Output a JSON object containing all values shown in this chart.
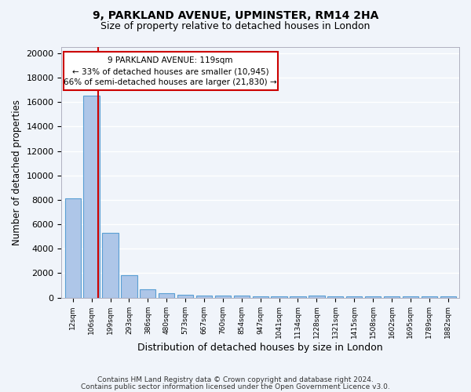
{
  "title1": "9, PARKLAND AVENUE, UPMINSTER, RM14 2HA",
  "title2": "Size of property relative to detached houses in London",
  "xlabel": "Distribution of detached houses by size in London",
  "ylabel": "Number of detached properties",
  "bar_color": "#aec6e8",
  "bar_edge_color": "#5a9fd4",
  "bin_labels": [
    "12sqm",
    "106sqm",
    "199sqm",
    "293sqm",
    "386sqm",
    "480sqm",
    "573sqm",
    "667sqm",
    "760sqm",
    "854sqm",
    "947sqm",
    "1041sqm",
    "1134sqm",
    "1228sqm",
    "1321sqm",
    "1415sqm",
    "1508sqm",
    "1602sqm",
    "1695sqm",
    "1789sqm",
    "1882sqm"
  ],
  "bar_heights": [
    8100,
    16500,
    5300,
    1850,
    650,
    350,
    250,
    175,
    150,
    150,
    125,
    100,
    100,
    150,
    100,
    100,
    100,
    100,
    100,
    100,
    100
  ],
  "ylim": [
    0,
    20500
  ],
  "yticks": [
    0,
    2000,
    4000,
    6000,
    8000,
    10000,
    12000,
    14000,
    16000,
    18000,
    20000
  ],
  "property_line_label": "9 PARKLAND AVENUE: 119sqm",
  "annotation_line1": "← 33% of detached houses are smaller (10,945)",
  "annotation_line2": "66% of semi-detached houses are larger (21,830) →",
  "annotation_box_color": "#ffffff",
  "annotation_box_edge_color": "#cc0000",
  "red_line_color": "#cc0000",
  "footer1": "Contains HM Land Registry data © Crown copyright and database right 2024.",
  "footer2": "Contains public sector information licensed under the Open Government Licence v3.0.",
  "background_color": "#f0f4fa",
  "grid_color": "#ffffff"
}
